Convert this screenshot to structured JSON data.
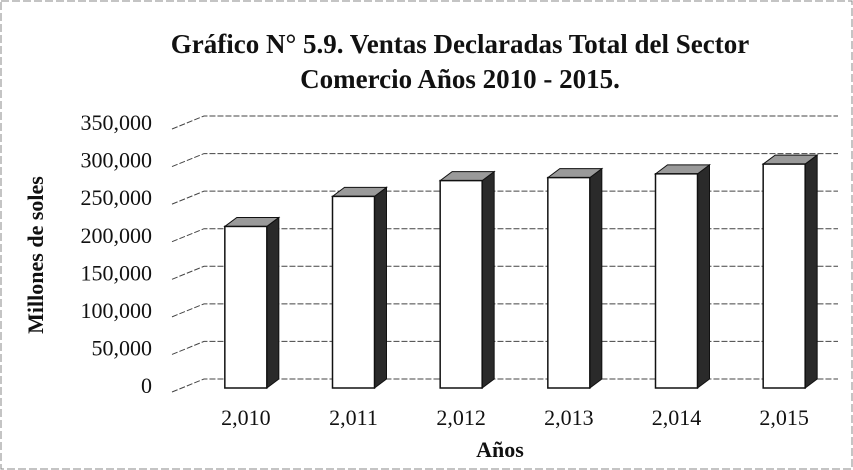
{
  "chart_data": {
    "type": "bar3d",
    "title": [
      "Gráfico N° 5.9. Ventas Declaradas Total del Sector",
      "Comercio Años 2010 - 2015."
    ],
    "xlabel": "Años",
    "ylabel": "Millones de soles",
    "categories": [
      "2,010",
      "2,011",
      "2,012",
      "2,013",
      "2,014",
      "2,015"
    ],
    "values": [
      215000,
      255000,
      276000,
      280000,
      285000,
      298000
    ],
    "color": "#ffffff",
    "side_color": "#2a2a2a",
    "top_color": "#9a9a9a",
    "ylim": [
      0,
      350000
    ],
    "yticks": [
      0,
      {
        "value": 50000,
        "label": "50,000"
      },
      {
        "value": 100000,
        "label": "100,000"
      },
      {
        "value": 150000,
        "label": "150,000"
      },
      {
        "value": 200000,
        "label": "200,000"
      },
      {
        "value": 250000,
        "label": "250,000"
      },
      {
        "value": 300000,
        "label": "300,000"
      },
      {
        "value": 350000,
        "label": "350,000"
      }
    ],
    "grid": true
  }
}
